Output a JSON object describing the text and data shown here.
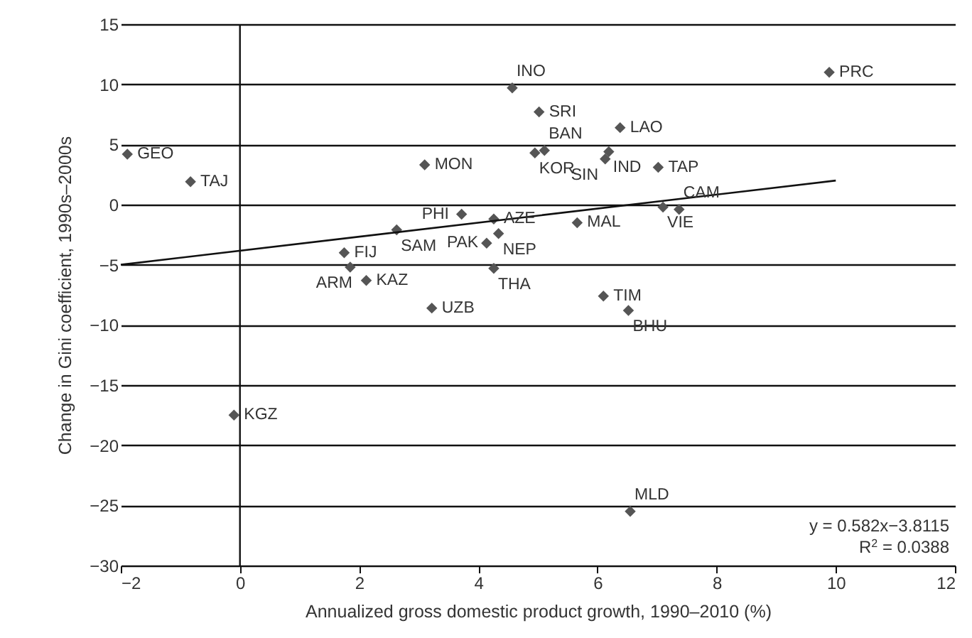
{
  "chart_data": {
    "type": "scatter",
    "xlabel": "Annualized gross domestic product growth, 1990–2010 (%)",
    "ylabel": "Change in Gini coefficient, 1990s–2000s",
    "xlim": [
      -2,
      12
    ],
    "xticks": [
      -2,
      0,
      2,
      4,
      6,
      8,
      10,
      12
    ],
    "ylim": [
      -30,
      15
    ],
    "yticks": [
      -30,
      -25,
      -20,
      -15,
      -10,
      -5,
      0,
      5,
      10,
      15
    ],
    "grid": "y",
    "marker": "diamond",
    "series": [
      {
        "color": "#555555",
        "x": [
          -1.89,
          -0.83,
          1.75,
          1.85,
          2.12,
          2.63,
          3.1,
          3.22,
          3.72,
          4.26,
          4.34,
          4.14,
          4.26,
          4.57,
          5.02,
          4.95,
          5.11,
          6.38,
          6.19,
          6.13,
          7.02,
          7.1,
          7.37,
          5.66,
          6.1,
          6.52,
          9.89,
          -0.1,
          6.55
        ],
        "values": [
          4.2,
          1.9,
          -4.0,
          -5.2,
          -6.3,
          -2.1,
          3.3,
          -8.6,
          -0.8,
          -1.2,
          -2.4,
          -3.2,
          -5.3,
          9.7,
          7.7,
          4.3,
          4.5,
          6.4,
          4.4,
          3.8,
          3.1,
          -0.2,
          -0.4,
          -1.5,
          -7.6,
          -8.8,
          11.0,
          -17.5,
          -25.5
        ]
      },
      {
        "type": "line",
        "color": "#111111",
        "marker": "none",
        "x": [
          -2,
          10
        ],
        "values": [
          -5,
          2
        ]
      }
    ],
    "ref_lines": [
      {
        "axis": "x",
        "value": 0,
        "color": "#111111"
      }
    ],
    "annotations": [
      {
        "text": "GEO",
        "x": -1.89,
        "y": 4.2
      },
      {
        "text": "TAJ",
        "x": -0.83,
        "y": 1.9
      },
      {
        "text": "FIJ",
        "x": 1.75,
        "y": -4.0
      },
      {
        "text": "ARM",
        "x": 1.85,
        "y": -5.2
      },
      {
        "text": "KAZ",
        "x": 2.12,
        "y": -6.3
      },
      {
        "text": "SAM",
        "x": 2.63,
        "y": -2.1
      },
      {
        "text": "MON",
        "x": 3.1,
        "y": 3.3
      },
      {
        "text": "UZB",
        "x": 3.22,
        "y": -8.6
      },
      {
        "text": "PHI",
        "x": 3.72,
        "y": -0.8
      },
      {
        "text": "AZE",
        "x": 4.26,
        "y": -1.2
      },
      {
        "text": "NEP",
        "x": 4.34,
        "y": -2.4
      },
      {
        "text": "PAK",
        "x": 4.14,
        "y": -3.2
      },
      {
        "text": "THA",
        "x": 4.26,
        "y": -5.3
      },
      {
        "text": "INO",
        "x": 4.57,
        "y": 9.7
      },
      {
        "text": "SRI",
        "x": 5.02,
        "y": 7.7
      },
      {
        "text": "KOR",
        "x": 4.95,
        "y": 4.3
      },
      {
        "text": "BAN",
        "x": 5.11,
        "y": 4.5
      },
      {
        "text": "LAO",
        "x": 6.38,
        "y": 6.4
      },
      {
        "text": "IND",
        "x": 6.19,
        "y": 4.4
      },
      {
        "text": "SIN",
        "x": 6.13,
        "y": 3.8
      },
      {
        "text": "TAP",
        "x": 7.02,
        "y": 3.1
      },
      {
        "text": "VIE",
        "x": 7.1,
        "y": -0.2
      },
      {
        "text": "CAM",
        "x": 7.37,
        "y": -0.4
      },
      {
        "text": "MAL",
        "x": 5.66,
        "y": -1.5
      },
      {
        "text": "TIM",
        "x": 6.1,
        "y": -7.6
      },
      {
        "text": "BHU",
        "x": 6.52,
        "y": -8.8
      },
      {
        "text": "PRC",
        "x": 9.89,
        "y": 11.0
      },
      {
        "text": "KGZ",
        "x": -0.1,
        "y": -17.5
      },
      {
        "text": "MLD",
        "x": 6.55,
        "y": -25.5
      },
      "y = 0.582x−3.8115",
      "R$^{2}$ = 0.0388"
    ]
  }
}
